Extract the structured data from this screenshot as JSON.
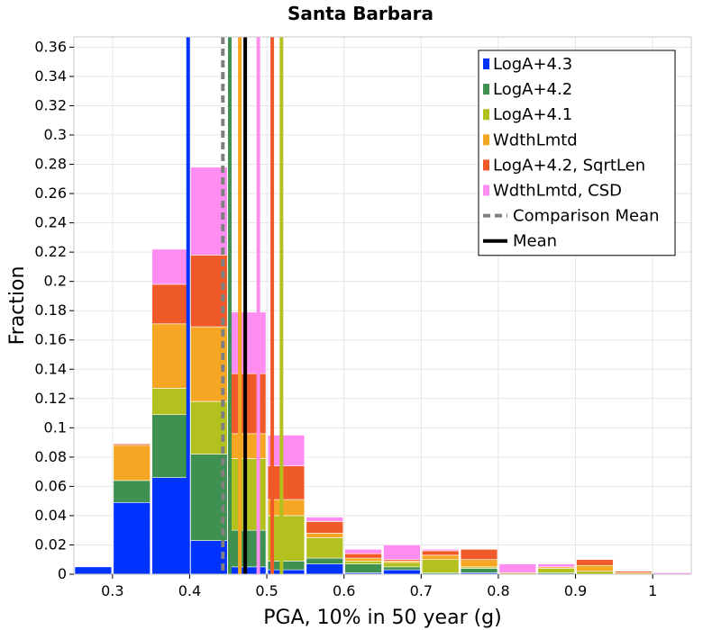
{
  "chart_data": {
    "type": "bar",
    "stacked": true,
    "title": "Santa Barbara",
    "xlabel": "PGA, 10% in 50 year (g)",
    "ylabel": "Fraction",
    "xlim": [
      0.25,
      1.05
    ],
    "ylim": [
      0,
      0.367
    ],
    "xticks": [
      "0.3",
      "0.4",
      "0.5",
      "0.6",
      "0.7",
      "0.8",
      "0.9",
      "1"
    ],
    "yticks": [
      "0",
      "0.02",
      "0.04",
      "0.06",
      "0.08",
      "0.1",
      "0.12",
      "0.14",
      "0.16",
      "0.18",
      "0.2",
      "0.22",
      "0.24",
      "0.26",
      "0.28",
      "0.3",
      "0.32",
      "0.34",
      "0.36"
    ],
    "grid": true,
    "legend_position": "top-right",
    "bin_width": 0.05,
    "x": [
      0.275,
      0.325,
      0.375,
      0.425,
      0.475,
      0.525,
      0.575,
      0.625,
      0.675,
      0.725,
      0.775,
      0.825,
      0.875,
      0.925,
      0.975,
      1.025
    ],
    "series": [
      {
        "name": "LogA+4.3",
        "color": "#0033ff",
        "values": [
          0.005,
          0.049,
          0.066,
          0.023,
          0.005,
          0.003,
          0.007,
          0.001,
          0.003,
          0,
          0.001,
          0,
          0,
          0,
          0,
          0
        ]
      },
      {
        "name": "LogA+4.2",
        "color": "#3f9151",
        "values": [
          0,
          0.015,
          0.043,
          0.059,
          0.025,
          0.006,
          0.004,
          0.006,
          0.002,
          0.001,
          0.003,
          0,
          0.001,
          0,
          0,
          0
        ]
      },
      {
        "name": "LogA+4.1",
        "color": "#b3c11f",
        "values": [
          0,
          0,
          0.018,
          0.036,
          0.049,
          0.031,
          0.014,
          0.002,
          0.003,
          0.009,
          0.001,
          0,
          0.003,
          0.002,
          0,
          0
        ]
      },
      {
        "name": "WdthLmtd",
        "color": "#f5a623",
        "values": [
          0,
          0.024,
          0.044,
          0.051,
          0.017,
          0.011,
          0.003,
          0.002,
          0.001,
          0.003,
          0.005,
          0.001,
          0.001,
          0.004,
          0.001,
          0
        ]
      },
      {
        "name": "LogA+4.2, SqrtLen",
        "color": "#f05a28",
        "values": [
          0,
          0.001,
          0.027,
          0.049,
          0.041,
          0.023,
          0.008,
          0.003,
          0.001,
          0.003,
          0.007,
          0,
          0,
          0.004,
          0.001,
          0
        ]
      },
      {
        "name": "WdthLmtd, CSD",
        "color": "#ff8cf0",
        "values": [
          0,
          0,
          0.024,
          0.06,
          0.042,
          0.021,
          0.003,
          0.003,
          0.01,
          0.001,
          0,
          0.006,
          0.002,
          0,
          0,
          0.001
        ]
      }
    ],
    "vertical_lines": [
      {
        "name": "LogA+4.3",
        "color": "#0033ff",
        "x": 0.398,
        "style": "solid"
      },
      {
        "name": "LogA+4.2",
        "color": "#3f9151",
        "x": 0.452,
        "style": "solid"
      },
      {
        "name": "WdthLmtd",
        "color": "#f5a623",
        "x": 0.465,
        "style": "solid"
      },
      {
        "name": "WdthLmtd, CSD",
        "color": "#ff8cf0",
        "x": 0.489,
        "style": "solid"
      },
      {
        "name": "LogA+4.2, SqrtLen",
        "color": "#f05a28",
        "x": 0.507,
        "style": "solid"
      },
      {
        "name": "LogA+4.1",
        "color": "#b3c11f",
        "x": 0.519,
        "style": "solid"
      },
      {
        "name": "Comparison Mean",
        "color": "#808080",
        "x": 0.443,
        "style": "dashed"
      },
      {
        "name": "Mean",
        "color": "#000000",
        "x": 0.472,
        "style": "solid"
      }
    ],
    "legend": [
      {
        "label": "LogA+4.3",
        "color": "#0033ff",
        "kind": "box"
      },
      {
        "label": "LogA+4.2",
        "color": "#3f9151",
        "kind": "box"
      },
      {
        "label": "LogA+4.1",
        "color": "#b3c11f",
        "kind": "box"
      },
      {
        "label": "WdthLmtd",
        "color": "#f5a623",
        "kind": "box"
      },
      {
        "label": "LogA+4.2, SqrtLen",
        "color": "#f05a28",
        "kind": "box"
      },
      {
        "label": "WdthLmtd, CSD",
        "color": "#ff8cf0",
        "kind": "box"
      },
      {
        "label": "Comparison Mean",
        "color": "#808080",
        "kind": "dashed"
      },
      {
        "label": "Mean",
        "color": "#000000",
        "kind": "line"
      }
    ]
  }
}
